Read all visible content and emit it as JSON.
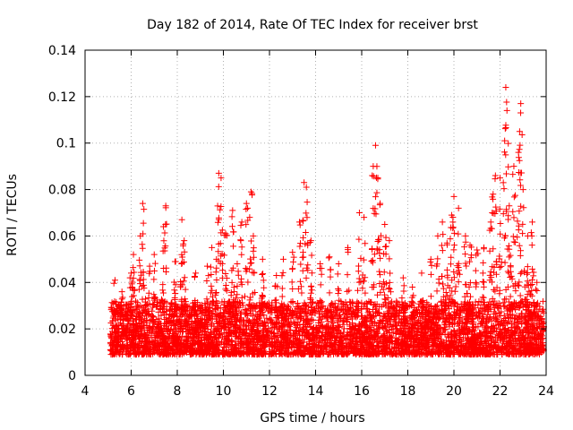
{
  "chart_data": {
    "type": "scatter",
    "title": "Day 182 of 2014, Rate Of TEC Index for receiver brst",
    "xlabel": "GPS time / hours",
    "ylabel": "ROTI / TECUs",
    "xlim": [
      4,
      24
    ],
    "ylim": [
      0,
      0.14
    ],
    "xticks": [
      4,
      6,
      8,
      10,
      12,
      14,
      16,
      18,
      20,
      22,
      24
    ],
    "yticks": [
      0,
      0.02,
      0.04,
      0.06,
      0.08,
      0.1,
      0.12,
      0.14
    ],
    "ytick_labels": [
      "0",
      "0.02",
      "0.04",
      "0.06",
      "0.08",
      "0.1",
      "0.12",
      "0.14"
    ],
    "grid": true,
    "marker": "+",
    "series": [
      {
        "name": "ROTI",
        "color": "#ff0000",
        "x_range": [
          5.1,
          23.9
        ],
        "typical_band": [
          0.005,
          0.04
        ],
        "points": [
          [
            5.3,
            0.041
          ],
          [
            5.6,
            0.036
          ],
          [
            6.0,
            0.044
          ],
          [
            6.1,
            0.052
          ],
          [
            6.4,
            0.06
          ],
          [
            6.5,
            0.074
          ],
          [
            6.8,
            0.047
          ],
          [
            7.0,
            0.052
          ],
          [
            7.4,
            0.064
          ],
          [
            7.5,
            0.073
          ],
          [
            7.9,
            0.049
          ],
          [
            8.2,
            0.067
          ],
          [
            8.3,
            0.058
          ],
          [
            8.8,
            0.044
          ],
          [
            9.3,
            0.047
          ],
          [
            9.5,
            0.055
          ],
          [
            9.7,
            0.05
          ],
          [
            9.8,
            0.087
          ],
          [
            9.9,
            0.085
          ],
          [
            10.1,
            0.061
          ],
          [
            10.4,
            0.071
          ],
          [
            10.6,
            0.048
          ],
          [
            10.8,
            0.066
          ],
          [
            11.0,
            0.074
          ],
          [
            11.2,
            0.079
          ],
          [
            11.3,
            0.06
          ],
          [
            11.7,
            0.05
          ],
          [
            12.3,
            0.043
          ],
          [
            12.6,
            0.05
          ],
          [
            13.0,
            0.053
          ],
          [
            13.3,
            0.066
          ],
          [
            13.5,
            0.083
          ],
          [
            13.6,
            0.081
          ],
          [
            13.8,
            0.058
          ],
          [
            14.2,
            0.048
          ],
          [
            14.6,
            0.051
          ],
          [
            15.0,
            0.048
          ],
          [
            15.4,
            0.055
          ],
          [
            15.9,
            0.07
          ],
          [
            16.1,
            0.068
          ],
          [
            16.5,
            0.09
          ],
          [
            16.6,
            0.099
          ],
          [
            16.7,
            0.085
          ],
          [
            16.8,
            0.074
          ],
          [
            17.0,
            0.065
          ],
          [
            17.2,
            0.058
          ],
          [
            17.8,
            0.042
          ],
          [
            18.2,
            0.038
          ],
          [
            18.6,
            0.044
          ],
          [
            19.0,
            0.05
          ],
          [
            19.3,
            0.06
          ],
          [
            19.5,
            0.066
          ],
          [
            19.7,
            0.057
          ],
          [
            19.9,
            0.069
          ],
          [
            20.0,
            0.077
          ],
          [
            20.2,
            0.072
          ],
          [
            20.5,
            0.06
          ],
          [
            20.7,
            0.056
          ],
          [
            21.0,
            0.054
          ],
          [
            21.3,
            0.055
          ],
          [
            21.6,
            0.066
          ],
          [
            21.7,
            0.078
          ],
          [
            21.8,
            0.086
          ],
          [
            22.0,
            0.085
          ],
          [
            22.2,
            0.101
          ],
          [
            22.25,
            0.124
          ],
          [
            22.3,
            0.114
          ],
          [
            22.4,
            0.073
          ],
          [
            22.6,
            0.09
          ],
          [
            22.8,
            0.096
          ],
          [
            22.85,
            0.105
          ],
          [
            22.9,
            0.117
          ],
          [
            23.0,
            0.08
          ],
          [
            23.2,
            0.06
          ],
          [
            23.4,
            0.066
          ],
          [
            23.6,
            0.04
          ]
        ]
      }
    ]
  }
}
